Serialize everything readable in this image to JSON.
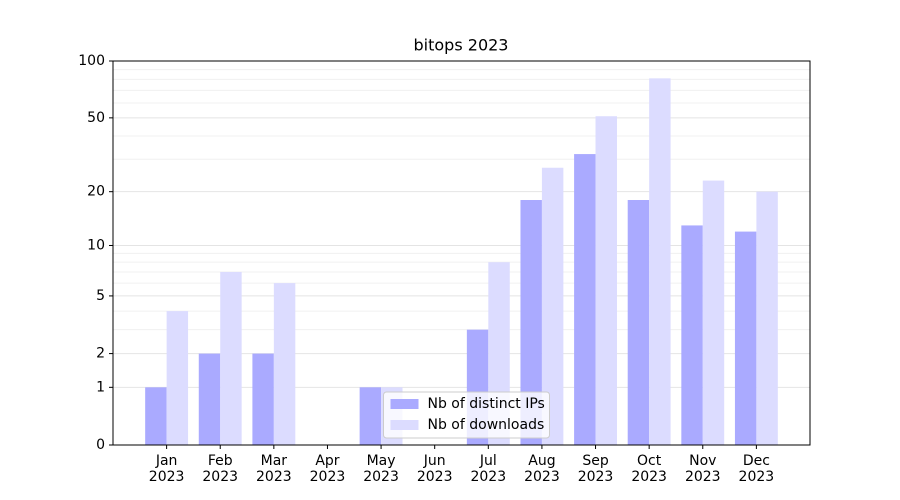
{
  "chart_data": {
    "type": "bar",
    "title": "bitops 2023",
    "categories": [
      "Jan\n2023",
      "Feb\n2023",
      "Mar\n2023",
      "Apr\n2023",
      "May\n2023",
      "Jun\n2023",
      "Jul\n2023",
      "Aug\n2023",
      "Sep\n2023",
      "Oct\n2023",
      "Nov\n2023",
      "Dec\n2023"
    ],
    "series": [
      {
        "name": "Nb of distinct IPs",
        "color": "#aaaaff",
        "values": [
          1,
          2,
          2,
          0,
          1,
          0,
          3,
          18,
          32,
          18,
          13,
          12
        ]
      },
      {
        "name": "Nb of downloads",
        "color": "#dcdcff",
        "values": [
          4,
          7,
          6,
          0,
          1,
          0,
          8,
          27,
          51,
          81,
          23,
          20
        ]
      }
    ],
    "yscale": "log1p",
    "ylim": [
      0,
      100
    ],
    "yticks": [
      0,
      1,
      2,
      5,
      10,
      20,
      50,
      100
    ],
    "yminorticks": [
      3,
      4,
      6,
      7,
      8,
      9,
      30,
      40,
      60,
      70,
      80,
      90
    ],
    "grid": true,
    "legend": "lower center"
  }
}
